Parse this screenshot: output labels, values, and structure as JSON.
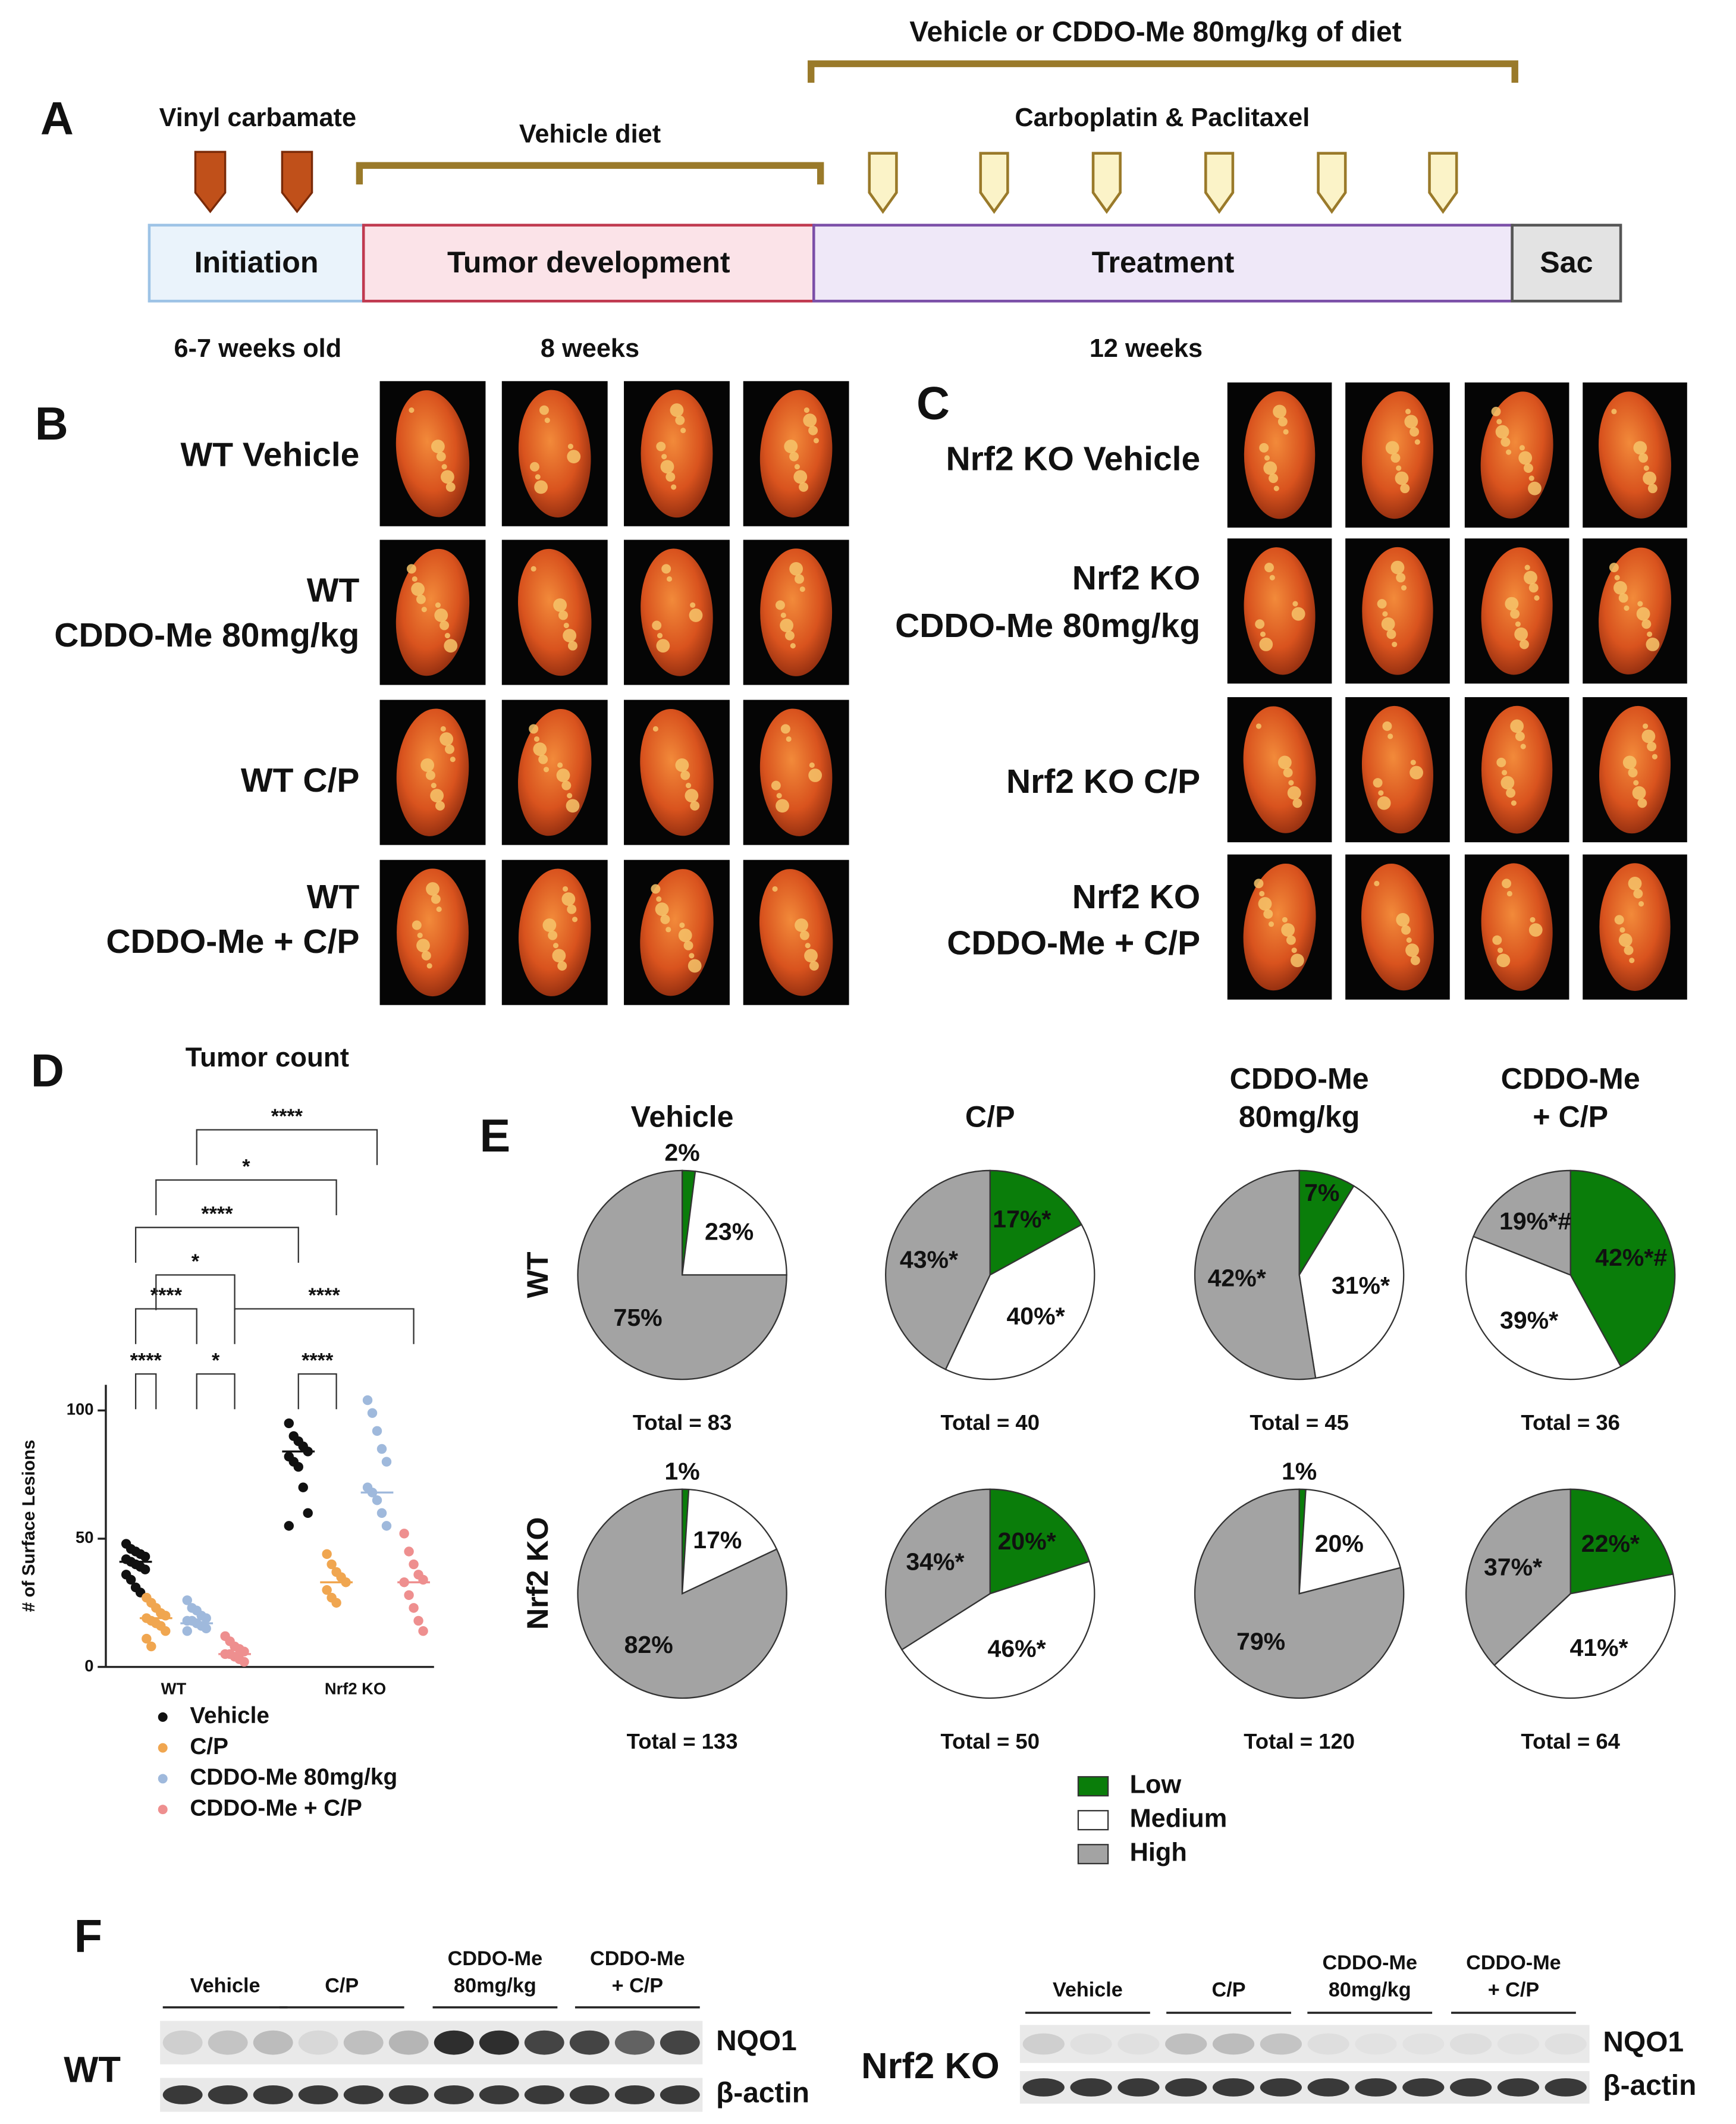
{
  "panel_labels": [
    "A",
    "B",
    "C",
    "D",
    "E",
    "F"
  ],
  "timeline": {
    "top_label": "Vehicle or CDDO-Me 80mg/kg of diet",
    "initiation_agent": "Vinyl carbamate",
    "vehicle_diet": "Vehicle diet",
    "chemo": "Carboplatin & Paclitaxel",
    "phases": [
      "Initiation",
      "Tumor development",
      "Treatment",
      "Sac"
    ],
    "times": [
      "6-7 weeks old",
      "8 weeks",
      "12 weeks"
    ]
  },
  "photos": {
    "wt_rows": [
      [
        "WT Vehicle"
      ],
      [
        "WT",
        "CDDO-Me 80mg/kg"
      ],
      [
        "WT C/P"
      ],
      [
        "WT",
        "CDDO-Me + C/P"
      ]
    ],
    "ko_rows": [
      [
        "Nrf2 KO Vehicle"
      ],
      [
        "Nrf2 KO",
        "CDDO-Me 80mg/kg"
      ],
      [
        "Nrf2 KO C/P"
      ],
      [
        "Nrf2 KO",
        "CDDO-Me + C/P"
      ]
    ]
  },
  "chart_data": [
    {
      "type": "strip",
      "title": "Tumor count",
      "y_label": "# of Surface Lesions",
      "categories": [
        "WT",
        "Nrf2 KO"
      ],
      "ylim": [
        0,
        110
      ],
      "yticks": [
        0,
        50,
        100
      ],
      "series": [
        {
          "name": "Vehicle",
          "color": "#111111",
          "values": [
            [
              48,
              46,
              45,
              44,
              43,
              42,
              41,
              40,
              39,
              38,
              36,
              34,
              31,
              29
            ],
            [
              95,
              90,
              88,
              86,
              84,
              82,
              80,
              78,
              70,
              60,
              55
            ]
          ],
          "medians": [
            41,
            84
          ]
        },
        {
          "name": "C/P",
          "color": "#f0a650",
          "values": [
            [
              27,
              25,
              23,
              21,
              20,
              19,
              18,
              17,
              16,
              14,
              11,
              8
            ],
            [
              44,
              40,
              37,
              35,
              33,
              30,
              27,
              25
            ]
          ],
          "medians": [
            19,
            33
          ]
        },
        {
          "name": "CDDO-Me 80mg/kg",
          "color": "#9fb9dc",
          "values": [
            [
              26,
              23,
              22,
              20,
              19,
              18,
              18,
              17,
              16,
              15,
              14
            ],
            [
              104,
              99,
              92,
              85,
              80,
              70,
              68,
              65,
              60,
              55
            ]
          ],
          "medians": [
            17,
            68
          ]
        },
        {
          "name": "CDDO-Me + C/P",
          "color": "#ee8f8f",
          "values": [
            [
              12,
              10,
              8,
              7,
              6,
              5,
              5,
              4,
              3,
              2
            ],
            [
              52,
              45,
              40,
              36,
              34,
              33,
              28,
              23,
              18,
              14
            ]
          ],
          "medians": [
            5,
            33
          ]
        }
      ],
      "comparisons": [
        {
          "label": "****",
          "pair": [
            [
              0,
              0
            ],
            [
              1,
              0
            ]
          ]
        },
        {
          "label": "*",
          "pair": [
            [
              2,
              0
            ],
            [
              3,
              0
            ]
          ]
        },
        {
          "label": "****",
          "pair": [
            [
              0,
              1
            ],
            [
              1,
              1
            ]
          ]
        },
        {
          "label": "****",
          "pair": [
            [
              0,
              0
            ],
            [
              2,
              0
            ]
          ]
        },
        {
          "label": "****",
          "pair": [
            [
              3,
              0
            ],
            [
              3,
              1
            ]
          ]
        },
        {
          "label": "*",
          "pair": [
            [
              1,
              0
            ],
            [
              3,
              0
            ]
          ]
        },
        {
          "label": "****",
          "pair": [
            [
              0,
              0
            ],
            [
              0,
              1
            ]
          ]
        },
        {
          "label": "*",
          "pair": [
            [
              1,
              0
            ],
            [
              1,
              1
            ]
          ]
        },
        {
          "label": "****",
          "pair": [
            [
              2,
              0
            ],
            [
              2,
              1
            ]
          ]
        }
      ]
    },
    {
      "type": "pie",
      "columns": [
        [
          "Vehicle"
        ],
        [
          "C/P"
        ],
        [
          "CDDO-Me",
          "80mg/kg"
        ],
        [
          "CDDO-Me",
          "+ C/P"
        ]
      ],
      "rows": [
        "WT",
        "Nrf2 KO"
      ],
      "categories": [
        "Low",
        "Medium",
        "High"
      ],
      "colors": [
        "#0a7d0a",
        "#ffffff",
        "#a3a3a3"
      ],
      "pies": [
        {
          "values": [
            2,
            23,
            75
          ],
          "value_labels": [
            "2%",
            "23%",
            "75%"
          ],
          "total": "Total = 83"
        },
        {
          "values": [
            17,
            40,
            43
          ],
          "value_labels": [
            "17%*",
            "40%*",
            "43%*"
          ],
          "total": "Total = 40"
        },
        {
          "values": [
            7,
            31,
            42
          ],
          "value_labels": [
            "7%",
            "31%*",
            "42%*"
          ],
          "total": "Total = 45"
        },
        {
          "values": [
            42,
            39,
            19
          ],
          "value_labels": [
            "42%*#",
            "39%*",
            "19%*#"
          ],
          "total": "Total = 36"
        },
        {
          "values": [
            1,
            17,
            82
          ],
          "value_labels": [
            "1%",
            "17%",
            "82%"
          ],
          "total": "Total = 133"
        },
        {
          "values": [
            20,
            46,
            34
          ],
          "value_labels": [
            "20%*",
            "46%*",
            "34%*"
          ],
          "total": "Total = 50"
        },
        {
          "values": [
            1,
            20,
            79
          ],
          "value_labels": [
            "1%",
            "20%",
            "79%"
          ],
          "total": "Total = 120"
        },
        {
          "values": [
            22,
            41,
            37
          ],
          "value_labels": [
            "22%*",
            "41%*",
            "37%*"
          ],
          "total": "Total = 64"
        }
      ]
    }
  ],
  "blots": {
    "groups": [
      [
        "Vehicle"
      ],
      [
        "C/P"
      ],
      [
        "CDDO-Me",
        "80mg/kg"
      ],
      [
        "CDDO-Me",
        "+ C/P"
      ]
    ],
    "proteins": [
      "NQO1",
      "β-actin"
    ],
    "genotypes": [
      "WT",
      "Nrf2 KO"
    ]
  }
}
